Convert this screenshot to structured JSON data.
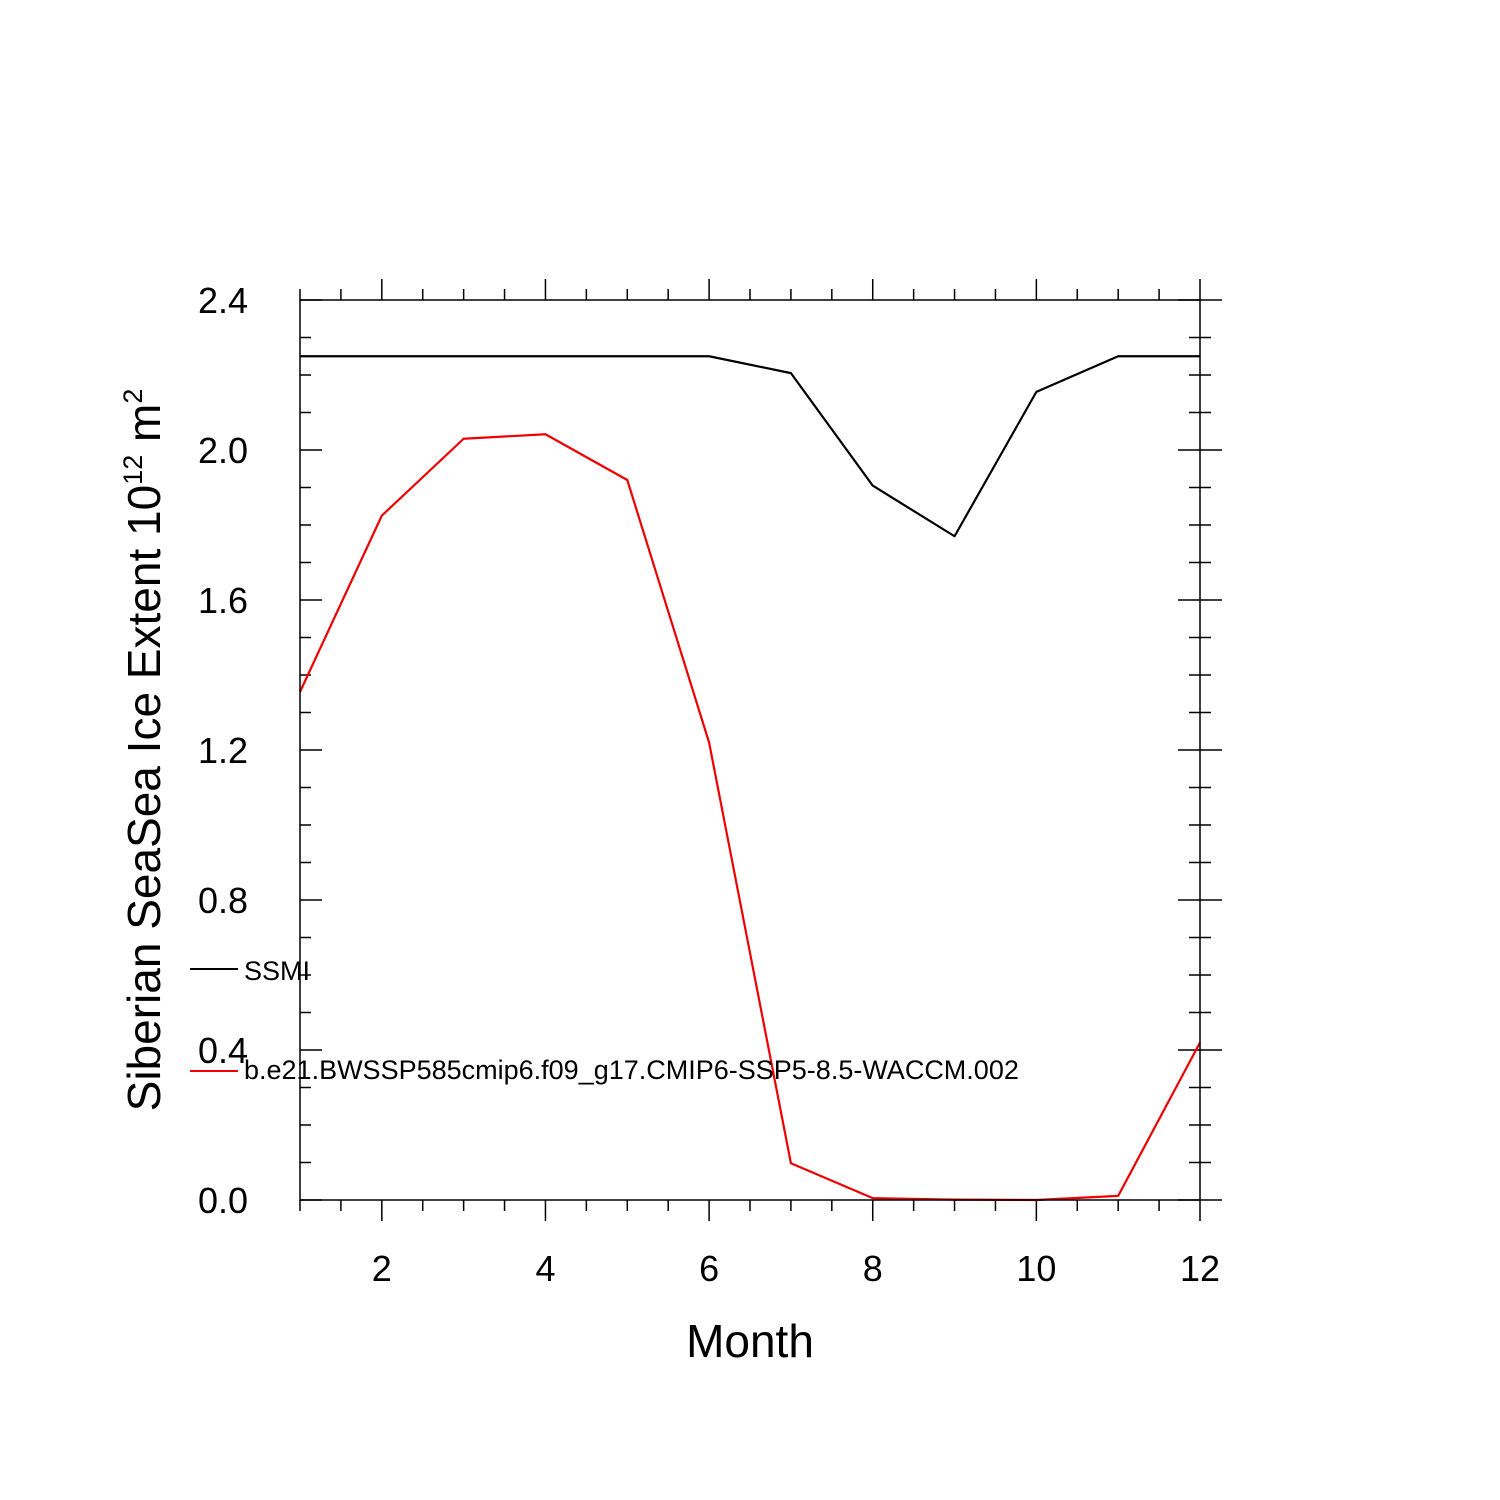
{
  "chart_data": {
    "type": "line",
    "title": "",
    "xlabel": "Month",
    "ylabel": {
      "prefix": "Siberian SeaSea Ice Extent 10",
      "exponent1": "12",
      "unit": " m",
      "exponent2": "2"
    },
    "xlim": [
      1,
      12
    ],
    "ylim": [
      0,
      2.4
    ],
    "xticks": [
      2,
      4,
      6,
      8,
      10,
      12
    ],
    "yticks": [
      0.0,
      0.4,
      0.8,
      1.2,
      1.6,
      2.0,
      2.4
    ],
    "ytick_labels": [
      "0.0",
      "0.4",
      "0.8",
      "1.2",
      "1.6",
      "2.0",
      "2.4"
    ],
    "grid": false,
    "legend_position": "left-inside",
    "x": [
      1,
      2,
      3,
      4,
      5,
      6,
      7,
      8,
      9,
      10,
      11,
      12
    ],
    "series": [
      {
        "name": "SSMI",
        "color": "#000000",
        "values": [
          2.25,
          2.25,
          2.25,
          2.25,
          2.25,
          2.25,
          2.205,
          1.905,
          1.77,
          2.155,
          2.25,
          2.25
        ]
      },
      {
        "name": "b.e21.BWSSP585cmip6.f09_g17.CMIP6-SSP5-8.5-WACCM.002",
        "color": "#ee0000",
        "values": [
          1.355,
          1.825,
          2.03,
          2.042,
          1.92,
          1.22,
          0.098,
          0.005,
          0.001,
          0.0,
          0.011,
          0.42
        ]
      }
    ]
  }
}
